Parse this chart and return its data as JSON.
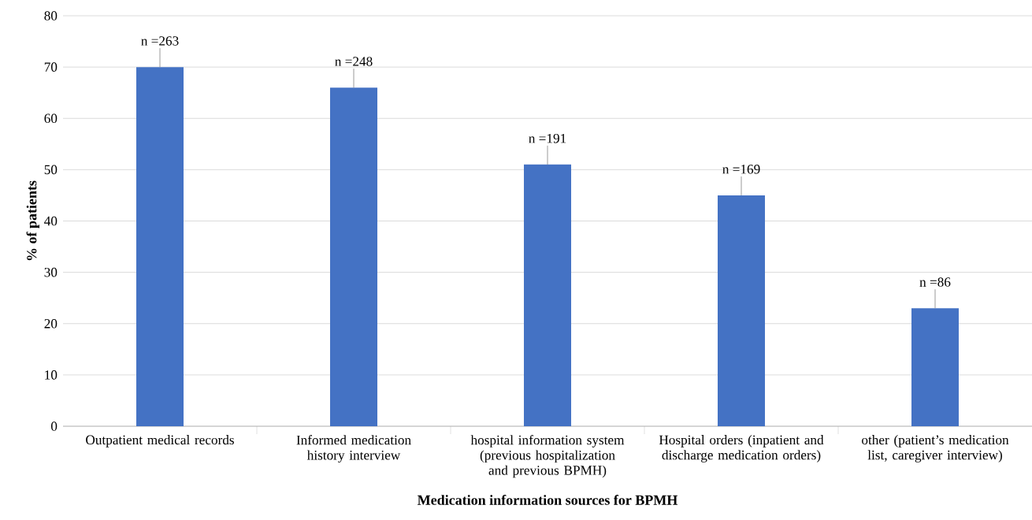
{
  "chart_data": {
    "type": "bar",
    "categories": [
      "Outpatient medical records",
      "Informed medication history interview",
      "hospital information system (previous hospitalization and previous BPMH)",
      "Hospital orders (inpatient and discharge medication orders)",
      "other (patient’s medication list, caregiver interview)"
    ],
    "values": [
      70,
      66,
      51,
      45,
      23
    ],
    "annotations": [
      {
        "text": "n =263",
        "x": "Outpatient medical records",
        "y": 70
      },
      {
        "text": "n =248",
        "x": "Informed medication history interview",
        "y": 66
      },
      {
        "text": "n =191",
        "x": "hospital information system (previous hospitalization and previous BPMH)",
        "y": 51
      },
      {
        "text": "n =169",
        "x": "Hospital orders (inpatient and discharge medication orders)",
        "y": 45
      },
      {
        "text": "n =86",
        "x": "other (patient’s medication list, caregiver interview)",
        "y": 23
      }
    ],
    "color": "#4472c4",
    "xlabel": "Medication information sources for BPMH",
    "ylabel": "% of patients",
    "ylim": [
      0,
      80
    ],
    "yticks": [
      0,
      10,
      20,
      30,
      40,
      50,
      60,
      70,
      80
    ],
    "grid": "y"
  }
}
